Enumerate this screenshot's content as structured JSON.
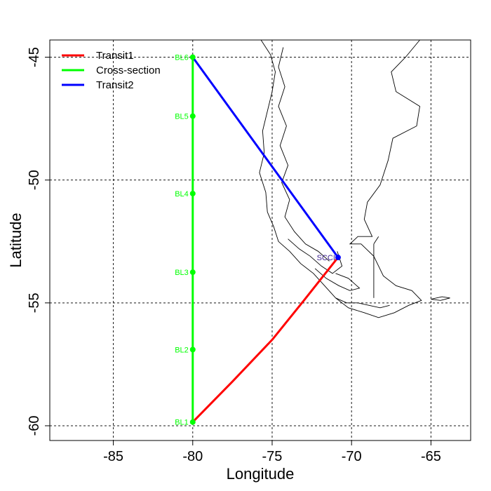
{
  "chart_data": {
    "type": "map",
    "xlabel": "Longitude",
    "ylabel": "Latitude",
    "xlim": [
      -89,
      -62.5
    ],
    "ylim": [
      -60.6,
      -44.3
    ],
    "x_ticks": [
      -85,
      -80,
      -75,
      -70,
      -65
    ],
    "y_ticks": [
      -45,
      -50,
      -55,
      -60
    ],
    "grid": true,
    "legend": {
      "placement": "top-left",
      "entries": [
        {
          "label": "Transit1",
          "color": "#ff0000"
        },
        {
          "label": "Cross-section",
          "color": "#00ff00"
        },
        {
          "label": "Transit2",
          "color": "#0000ff"
        }
      ]
    },
    "stations": [
      {
        "name": "BL1",
        "lon": -80.0,
        "lat": -59.85
      },
      {
        "name": "BL2",
        "lon": -80.0,
        "lat": -56.9
      },
      {
        "name": "BL3",
        "lon": -80.0,
        "lat": -53.75
      },
      {
        "name": "BL4",
        "lon": -80.0,
        "lat": -50.55
      },
      {
        "name": "BL5",
        "lon": -80.0,
        "lat": -47.4
      },
      {
        "name": "BL6",
        "lon": -80.0,
        "lat": -45.0
      }
    ],
    "port": {
      "name": "SCCI",
      "lon": -70.85,
      "lat": -53.15,
      "color": "#0000ff"
    },
    "tracks": [
      {
        "name": "Transit1",
        "color": "#ff0000",
        "points": [
          [
            -80.0,
            -59.85
          ],
          [
            -77.5,
            -58.2
          ],
          [
            -75.0,
            -56.5
          ],
          [
            -73.0,
            -54.9
          ],
          [
            -70.85,
            -53.15
          ]
        ]
      },
      {
        "name": "Cross-section",
        "color": "#00ff00",
        "points": [
          [
            -80.0,
            -59.85
          ],
          [
            -80.0,
            -45.0
          ]
        ]
      },
      {
        "name": "Transit2",
        "color": "#0000ff",
        "points": [
          [
            -80.0,
            -45.0
          ],
          [
            -70.85,
            -53.15
          ]
        ]
      }
    ],
    "coastline": [
      [
        [
          -75.7,
          -44.3
        ],
        [
          -75.1,
          -44.9
        ],
        [
          -74.8,
          -45.6
        ],
        [
          -75.0,
          -46.4
        ],
        [
          -75.3,
          -47.2
        ],
        [
          -75.6,
          -48.0
        ],
        [
          -75.5,
          -48.9
        ],
        [
          -75.8,
          -49.7
        ],
        [
          -75.4,
          -50.5
        ],
        [
          -75.3,
          -51.3
        ],
        [
          -74.9,
          -51.9
        ],
        [
          -74.6,
          -52.5
        ],
        [
          -73.9,
          -52.9
        ],
        [
          -73.2,
          -53.4
        ],
        [
          -72.4,
          -53.8
        ],
        [
          -71.7,
          -54.3
        ],
        [
          -71.0,
          -54.8
        ],
        [
          -70.2,
          -55.2
        ],
        [
          -69.2,
          -55.4
        ],
        [
          -68.3,
          -55.6
        ],
        [
          -67.3,
          -55.4
        ],
        [
          -66.4,
          -55.1
        ],
        [
          -65.6,
          -54.9
        ],
        [
          -66.2,
          -54.5
        ],
        [
          -67.2,
          -54.3
        ],
        [
          -68.0,
          -53.9
        ],
        [
          -68.6,
          -53.1
        ],
        [
          -69.4,
          -52.6
        ],
        [
          -70.1,
          -52.6
        ],
        [
          -69.6,
          -52.3
        ],
        [
          -68.7,
          -52.3
        ],
        [
          -69.2,
          -51.6
        ],
        [
          -69.0,
          -50.9
        ],
        [
          -68.2,
          -50.2
        ],
        [
          -67.7,
          -49.2
        ],
        [
          -67.4,
          -48.3
        ],
        [
          -65.9,
          -47.8
        ],
        [
          -65.7,
          -47.0
        ],
        [
          -67.2,
          -46.4
        ],
        [
          -67.5,
          -45.6
        ],
        [
          -66.6,
          -45.0
        ],
        [
          -65.7,
          -44.3
        ]
      ],
      [
        [
          -74.3,
          -44.6
        ],
        [
          -74.6,
          -45.4
        ],
        [
          -74.2,
          -46.2
        ],
        [
          -74.6,
          -47.0
        ],
        [
          -74.1,
          -47.8
        ],
        [
          -74.5,
          -48.6
        ],
        [
          -74.0,
          -49.4
        ],
        [
          -74.4,
          -50.1
        ],
        [
          -73.9,
          -50.8
        ],
        [
          -74.2,
          -51.5
        ],
        [
          -73.6,
          -52.1
        ],
        [
          -72.9,
          -52.6
        ],
        [
          -72.1,
          -52.9
        ],
        [
          -71.4,
          -53.3
        ]
      ],
      [
        [
          -74.0,
          -52.4
        ],
        [
          -73.3,
          -52.8
        ],
        [
          -72.6,
          -53.1
        ],
        [
          -71.9,
          -53.5
        ],
        [
          -71.2,
          -53.8
        ],
        [
          -70.6,
          -53.5
        ],
        [
          -70.9,
          -52.9
        ]
      ],
      [
        [
          -72.3,
          -53.6
        ],
        [
          -71.6,
          -54.0
        ],
        [
          -70.8,
          -54.3
        ],
        [
          -70.1,
          -54.5
        ],
        [
          -69.5,
          -54.4
        ],
        [
          -70.2,
          -54.0
        ],
        [
          -71.0,
          -53.8
        ]
      ],
      [
        [
          -71.0,
          -54.8
        ],
        [
          -70.3,
          -55.0
        ],
        [
          -69.6,
          -55.0
        ],
        [
          -68.9,
          -55.1
        ],
        [
          -68.2,
          -55.2
        ],
        [
          -67.6,
          -55.1
        ]
      ],
      [
        [
          -68.6,
          -52.6
        ],
        [
          -68.6,
          -54.8
        ]
      ],
      [
        [
          -68.6,
          -52.6
        ],
        [
          -68.3,
          -52.3
        ]
      ],
      [
        [
          -65.0,
          -54.85
        ],
        [
          -64.3,
          -54.75
        ],
        [
          -63.8,
          -54.8
        ],
        [
          -64.4,
          -54.9
        ],
        [
          -65.0,
          -54.85
        ]
      ]
    ]
  }
}
